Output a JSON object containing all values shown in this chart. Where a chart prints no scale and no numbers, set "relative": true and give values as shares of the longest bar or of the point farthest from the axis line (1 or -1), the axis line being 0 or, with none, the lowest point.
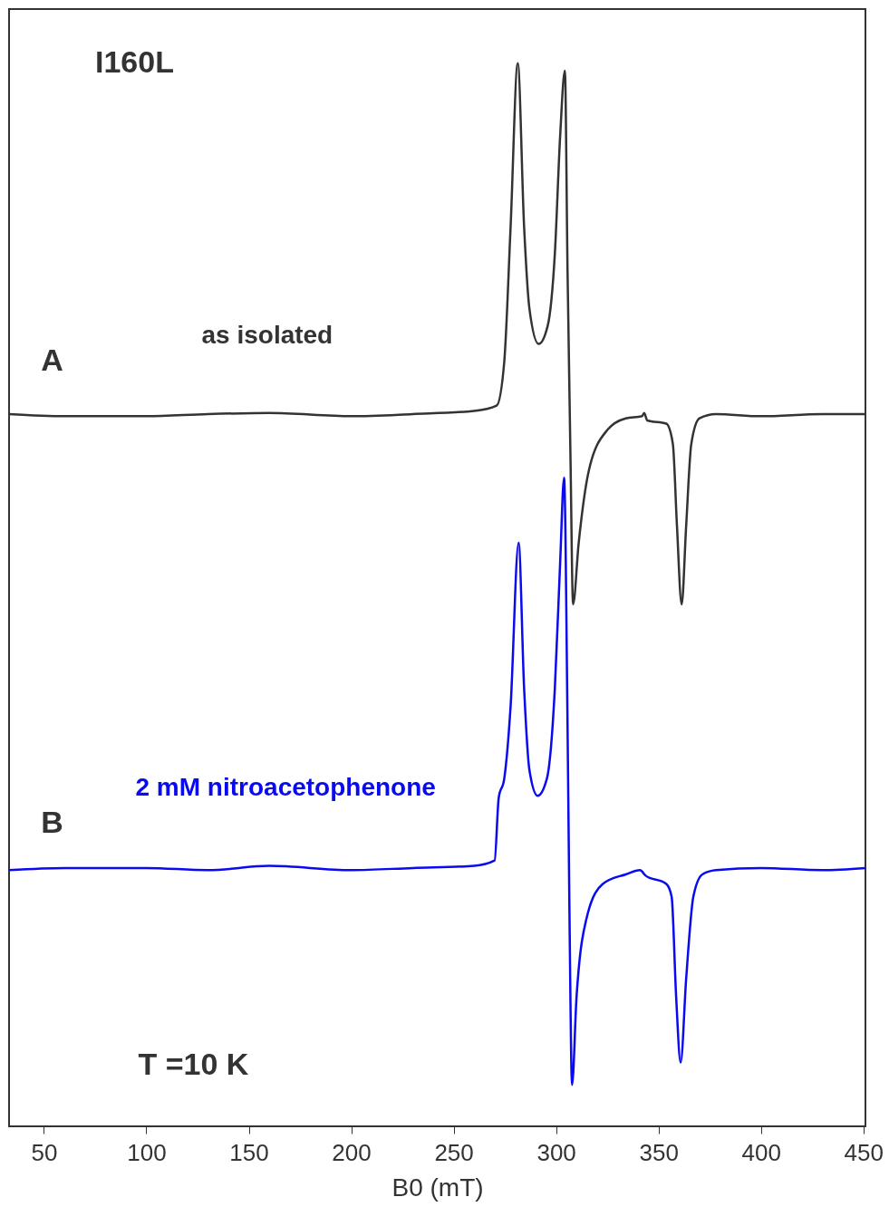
{
  "chart_data": {
    "type": "line",
    "relative": true,
    "xlabel": "B0 (mT)",
    "xlim": [
      33,
      451
    ],
    "xticks": [
      50,
      100,
      150,
      200,
      250,
      300,
      350,
      400,
      450
    ],
    "grid": false,
    "marker": "none",
    "line_style": "solid",
    "annotations": [
      "I160L",
      "A",
      "B",
      "T =10 K"
    ],
    "series": [
      {
        "name": "as isolated",
        "color": "#333333",
        "x": [
          33,
          60,
          100,
          130,
          160,
          200,
          230,
          260,
          271,
          274.7,
          277.8,
          281.3,
          284.4,
          287,
          291.5,
          295.9,
          299.4,
          302,
          304.3,
          305.6,
          307,
          308.3,
          311,
          316,
          325,
          334,
          342,
          343,
          344.5,
          353.8,
          357,
          359,
          361.3,
          363.5,
          366,
          370,
          378,
          400,
          430,
          451
        ],
        "values": [
          0.67,
          0.668,
          0.668,
          0.67,
          0.671,
          0.668,
          0.67,
          0.673,
          0.678,
          0.719,
          0.846,
          1.0,
          0.846,
          0.769,
          0.736,
          0.753,
          0.821,
          0.932,
          0.993,
          0.804,
          0.633,
          0.491,
          0.548,
          0.617,
          0.655,
          0.666,
          0.668,
          0.671,
          0.664,
          0.661,
          0.642,
          0.565,
          0.491,
          0.565,
          0.642,
          0.666,
          0.67,
          0.668,
          0.67,
          0.67
        ]
      },
      {
        "name": "2 mM nitroacetophenone",
        "color": "#0a0af0",
        "x": [
          33,
          60,
          100,
          130,
          160,
          200,
          230,
          260,
          270,
          272,
          274.7,
          277.8,
          281.7,
          284.4,
          287,
          291,
          295.5,
          299.4,
          302,
          303.9,
          305.6,
          306.5,
          307.8,
          310,
          315.3,
          322.8,
          334,
          341,
          343.6,
          353.8,
          356.4,
          358.6,
          360.8,
          363.5,
          367,
          371.4,
          378,
          400,
          430,
          451
        ],
        "values": [
          0.241,
          0.243,
          0.243,
          0.241,
          0.245,
          0.241,
          0.243,
          0.245,
          0.25,
          0.309,
          0.327,
          0.395,
          0.549,
          0.412,
          0.335,
          0.311,
          0.327,
          0.412,
          0.531,
          0.61,
          0.377,
          0.207,
          0.039,
          0.122,
          0.199,
          0.228,
          0.237,
          0.241,
          0.236,
          0.228,
          0.216,
          0.122,
          0.06,
          0.139,
          0.216,
          0.237,
          0.241,
          0.243,
          0.241,
          0.243
        ]
      }
    ]
  }
}
